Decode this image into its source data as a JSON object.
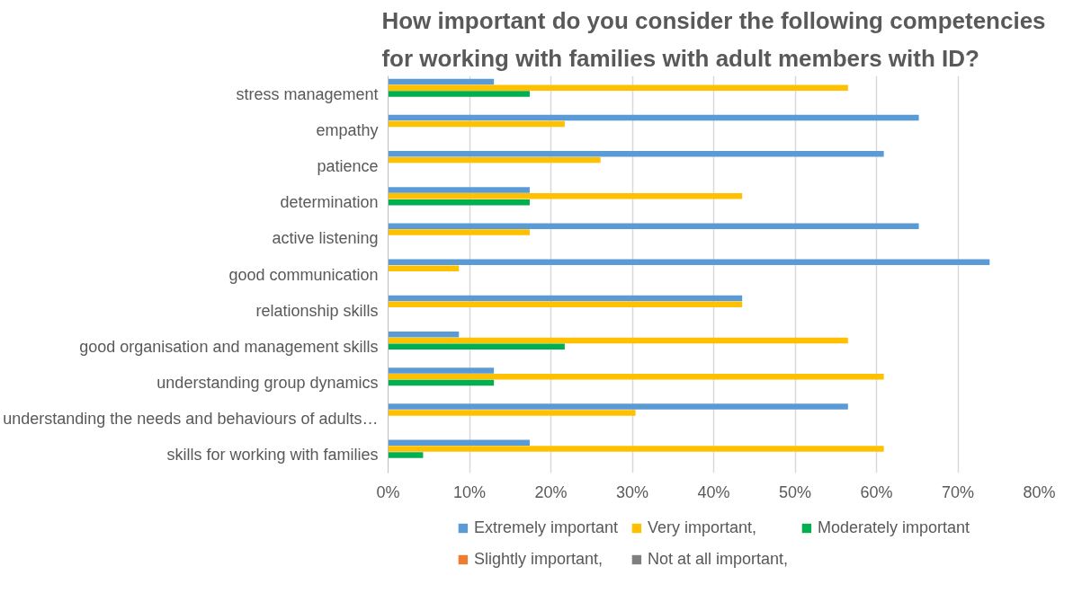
{
  "chart_data": {
    "type": "bar",
    "orientation": "horizontal",
    "title": "How important do you consider the following competencies for working with families with adult members with ID?",
    "categories": [
      "stress management",
      "empathy",
      "patience",
      "determination",
      "active listening",
      "good communication",
      "relationship skills",
      "good organisation and management skills",
      "understanding group dynamics",
      "understanding the needs and behaviours of adults…",
      "skills for working with families"
    ],
    "series": [
      {
        "name": "Extremely important",
        "color": "#5b9bd5",
        "values": [
          13.0,
          65.2,
          60.9,
          17.4,
          65.2,
          73.9,
          43.5,
          8.7,
          13.0,
          56.5,
          17.4
        ]
      },
      {
        "name": "Very important,",
        "color": "#ffc000",
        "values": [
          56.5,
          21.7,
          26.1,
          43.5,
          17.4,
          8.7,
          43.5,
          56.5,
          60.9,
          30.4,
          60.9
        ]
      },
      {
        "name": "Moderately important",
        "color": "#00b050",
        "values": [
          17.4,
          0,
          0,
          17.4,
          0,
          0,
          0,
          21.7,
          13.0,
          0,
          4.3
        ]
      },
      {
        "name": "Slightly important,",
        "color": "#ed7d31",
        "values": [
          0,
          0,
          0,
          0,
          0,
          0,
          0,
          0,
          0,
          0,
          0
        ]
      },
      {
        "name": "Not at all important,",
        "color": "#7f7f7f",
        "values": [
          0,
          0,
          0,
          0,
          0,
          0,
          0,
          0,
          0,
          0,
          0
        ]
      }
    ],
    "xlim": [
      0,
      80
    ],
    "xticks": [
      {
        "value": 0,
        "label": "0%"
      },
      {
        "value": 10,
        "label": "10%"
      },
      {
        "value": 20,
        "label": "20%"
      },
      {
        "value": 30,
        "label": "30%"
      },
      {
        "value": 40,
        "label": "40%"
      },
      {
        "value": 50,
        "label": "50%"
      },
      {
        "value": 60,
        "label": "60%"
      },
      {
        "value": 70,
        "label": "70%"
      },
      {
        "value": 80,
        "label": "80%"
      }
    ],
    "grid": "x",
    "legend": "bottom"
  }
}
